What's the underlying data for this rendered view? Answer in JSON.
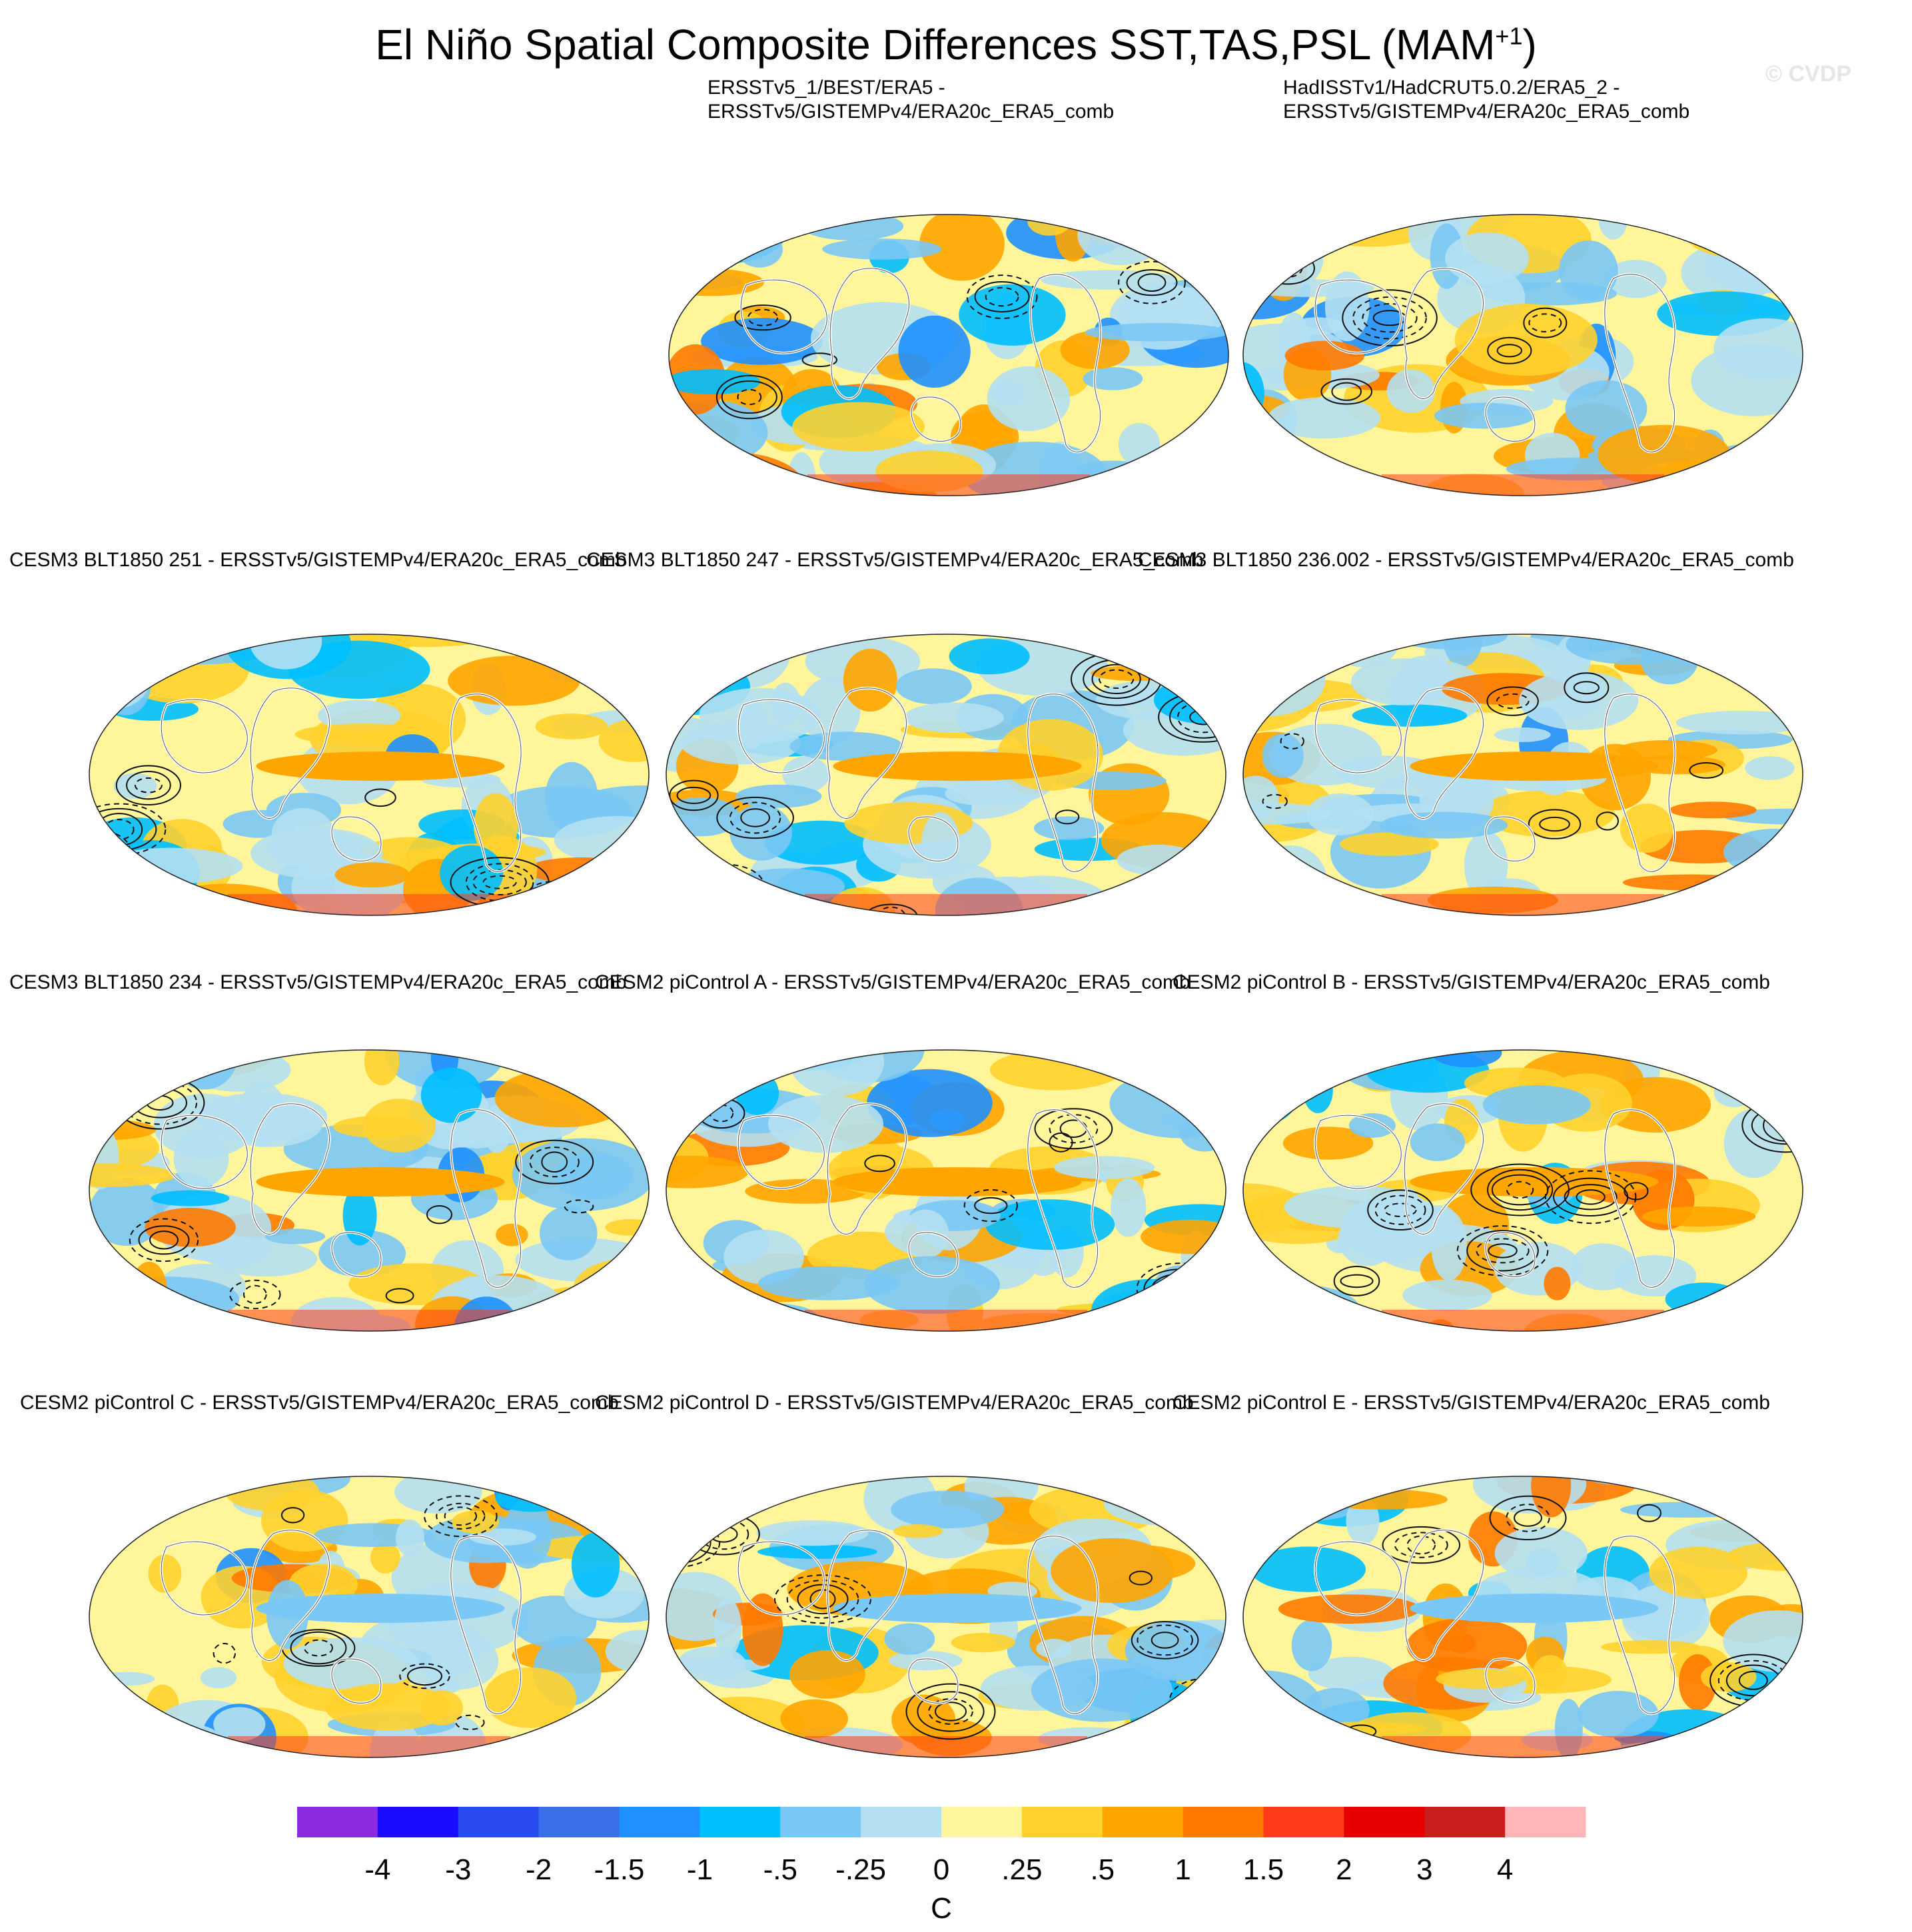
{
  "figure": {
    "title": "El Niño Spatial Composite Differences SST,TAS,PSL (MAM",
    "title_superscript": "+1",
    "title_close": ")",
    "watermark": "© CVDP"
  },
  "panels": [
    {
      "title_lines": [
        "ERSSTv5_1/BEST/ERA5 -",
        "ERSSTv5/GISTEMPv4/ERA20c_ERA5_comb"
      ]
    },
    {
      "title_lines": [
        "HadISSTv1/HadCRUT5.0.2/ERA5_2 -",
        "ERSSTv5/GISTEMPv4/ERA20c_ERA5_comb"
      ]
    },
    {
      "title_lines": [
        "CESM3 BLT1850 251 - ERSSTv5/GISTEMPv4/ERA20c_ERA5_comb"
      ]
    },
    {
      "title_lines": [
        "CESM3 BLT1850 247 - ERSSTv5/GISTEMPv4/ERA20c_ERA5_comb"
      ]
    },
    {
      "title_lines": [
        "CESM3 BLT1850 236.002 - ERSSTv5/GISTEMPv4/ERA20c_ERA5_comb"
      ]
    },
    {
      "title_lines": [
        "CESM3 BLT1850 234 - ERSSTv5/GISTEMPv4/ERA20c_ERA5_comb"
      ]
    },
    {
      "title_lines": [
        "CESM2 piControl A - ERSSTv5/GISTEMPv4/ERA20c_ERA5_comb"
      ]
    },
    {
      "title_lines": [
        "CESM2 piControl B - ERSSTv5/GISTEMPv4/ERA20c_ERA5_comb"
      ]
    },
    {
      "title_lines": [
        "CESM2 piControl C - ERSSTv5/GISTEMPv4/ERA20c_ERA5_comb"
      ]
    },
    {
      "title_lines": [
        "CESM2 piControl D - ERSSTv5/GISTEMPv4/ERA20c_ERA5_comb"
      ]
    },
    {
      "title_lines": [
        "CESM2 piControl E - ERSSTv5/GISTEMPv4/ERA20c_ERA5_comb"
      ]
    }
  ],
  "colorbar": {
    "units": "C",
    "labels": [
      "-4",
      "-3",
      "-2",
      "-1.5",
      "-1",
      "-.5",
      "-.25",
      "0",
      ".25",
      ".5",
      "1",
      "1.5",
      "2",
      "3",
      "4"
    ],
    "colors": [
      "#8a2be2",
      "#1a0dff",
      "#2a4bf0",
      "#3a6fe8",
      "#1e90ff",
      "#00bfff",
      "#7ac8f5",
      "#b4e0f2",
      "#fff59a",
      "#ffd22e",
      "#ffa500",
      "#ff7a00",
      "#ff3c1a",
      "#e60000",
      "#c81e1e",
      "#ffb6b9"
    ]
  }
}
